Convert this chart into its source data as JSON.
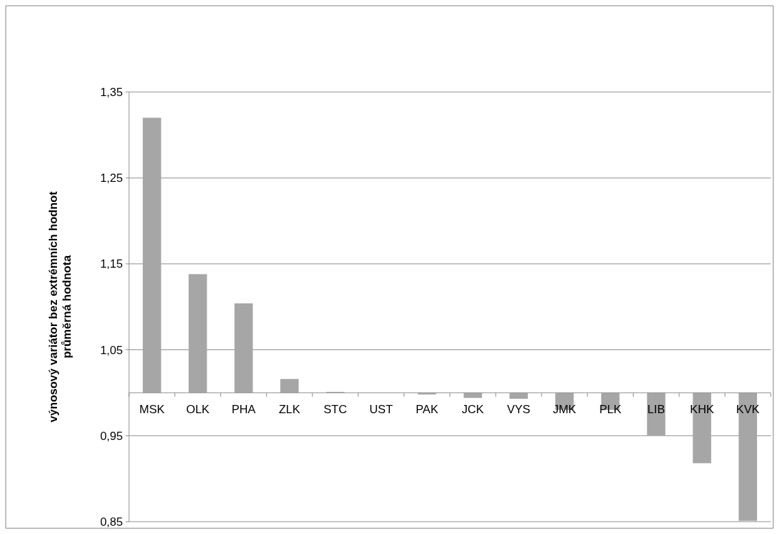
{
  "chart_data": {
    "type": "bar",
    "ylabel": "výnosový variátor bez extrémních hodnot\nprůměrná hodnota",
    "categories": [
      "MSK",
      "OLK",
      "PHA",
      "ZLK",
      "STC",
      "UST",
      "PAK",
      "JCK",
      "VYS",
      "JMK",
      "PLK",
      "LIB",
      "KHK",
      "KVK"
    ],
    "base": [
      1,
      1,
      1,
      1,
      1,
      null,
      1,
      1,
      1,
      1,
      1,
      1,
      1,
      1
    ],
    "values": [
      0.32,
      0.138,
      0.104,
      0.016,
      0.001,
      null,
      -0.002,
      -0.006,
      -0.007,
      -0.02,
      -0.02,
      -0.05,
      -0.082,
      -0.149
    ],
    "color": "#a6a6a6",
    "ylim": [
      0.85,
      1.35
    ],
    "yticks": [
      {
        "value": 0.85,
        "label": "0,85"
      },
      {
        "value": 0.95,
        "label": "0,95"
      },
      {
        "value": 1.05,
        "label": "1,05"
      },
      {
        "value": 1.15,
        "label": "1,15"
      },
      {
        "value": 1.25,
        "label": "1,25"
      },
      {
        "value": 1.35,
        "label": "1,35"
      }
    ],
    "grid": "y"
  }
}
